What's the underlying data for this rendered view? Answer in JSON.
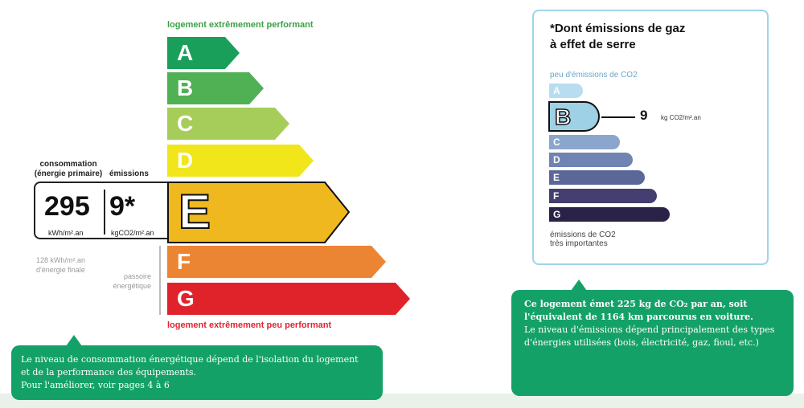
{
  "energy": {
    "top_caption": "logement extrêmement performant",
    "bottom_caption": "logement extrêmement peu performant",
    "consumption_label_line1": "consommation",
    "consumption_label_line2": "(énergie primaire)",
    "emissions_label": "émissions",
    "consumption_value": "295",
    "consumption_unit": "kWh/m².an",
    "emissions_value": "9*",
    "emissions_unit": "kgCO2/m².an",
    "final_energy_line1": "128 kWh/m².an",
    "final_energy_line2": "d'énergie finale",
    "passoire_line1": "passoire",
    "passoire_line2": "énergétique",
    "current_class": "E",
    "classes": [
      {
        "letter": "A",
        "color": "#1a9f5a"
      },
      {
        "letter": "B",
        "color": "#4fb054"
      },
      {
        "letter": "C",
        "color": "#a6cd5a"
      },
      {
        "letter": "D",
        "color": "#f0e61a"
      },
      {
        "letter": "E",
        "color": "#efb81f"
      },
      {
        "letter": "F",
        "color": "#ec8533"
      },
      {
        "letter": "G",
        "color": "#e0232b"
      }
    ]
  },
  "ges": {
    "title_line1": "*Dont émissions de gaz",
    "title_line2": "à effet de serre",
    "top_caption": "peu d'émissions de CO2",
    "bottom_caption_line1": "émissions de CO2",
    "bottom_caption_line2": "très importantes",
    "value": "9",
    "unit": "kg CO2/m².an",
    "current_class": "B",
    "classes": [
      {
        "letter": "A",
        "color": "#b9ddf0"
      },
      {
        "letter": "B",
        "color": "#9ed0e6"
      },
      {
        "letter": "C",
        "color": "#8aa6cc"
      },
      {
        "letter": "D",
        "color": "#6f84b2"
      },
      {
        "letter": "E",
        "color": "#5b6797"
      },
      {
        "letter": "F",
        "color": "#443f70"
      },
      {
        "letter": "G",
        "color": "#2a2347"
      }
    ]
  },
  "info_left": {
    "line1": "Le niveau de consommation énergétique dépend de l'isolation du logement",
    "line2": "et de la performance des équipements.",
    "line3": "Pour l'améliorer, voir pages 4 à 6"
  },
  "info_right": {
    "bold_line1": "Ce logement émet 225 kg de CO₂ par an, soit",
    "bold_line2": "l'équivalent de 1164  km parcourus en voiture.",
    "line3": "Le niveau d'émissions dépend principalement des types",
    "line4": "d'énergies utilisées (bois, électricité, gaz, fioul, etc.)"
  }
}
